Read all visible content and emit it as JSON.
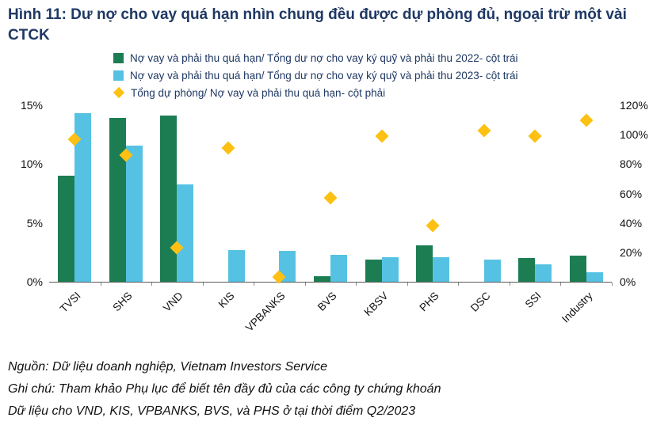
{
  "title": "Hình 11: Dư nợ cho vay quá hạn nhìn chung đều được dự phòng đủ, ngoại trừ một vài CTCK",
  "legend": [
    {
      "label": "Nợ vay và phải thu quá hạn/ Tổng dư nợ cho vay ký quỹ và phải thu 2022- cột trái",
      "swatch": "square",
      "color": "#1d7d52"
    },
    {
      "label": "Nợ vay và phải thu quá hạn/ Tổng dư nợ cho vay ký quỹ và phải thu 2023- cột trái",
      "swatch": "square",
      "color": "#56c2e3"
    },
    {
      "label": "Tổng dự phòng/ Nợ vay và phải thu quá hạn- cột phải",
      "swatch": "diamond",
      "color": "#fdc013"
    }
  ],
  "chart_data": {
    "type": "bar",
    "title": "Hình 11: Dư nợ cho vay quá hạn nhìn chung đều được dự phòng đủ, ngoại trừ một vài CTCK",
    "categories": [
      "TVSI",
      "SHS",
      "VND",
      "KIS",
      "VPBANKS",
      "BVS",
      "KBSV",
      "PHS",
      "DSC",
      "SSI",
      "Industry"
    ],
    "series": [
      {
        "name": "Nợ vay và phải thu quá hạn/ Tổng dư nợ cho vay ký quỹ và phải thu 2022- cột trái",
        "type": "bar",
        "axis": "left",
        "color": "#1d7d52",
        "values": [
          9.0,
          13.9,
          14.1,
          0,
          0,
          0.5,
          1.9,
          3.1,
          0,
          2.0,
          2.2
        ]
      },
      {
        "name": "Nợ vay và phải thu quá hạn/ Tổng dư nợ cho vay ký quỹ và phải thu 2023- cột trái",
        "type": "bar",
        "axis": "left",
        "color": "#56c2e3",
        "values": [
          14.3,
          11.6,
          8.3,
          2.7,
          2.6,
          2.3,
          2.1,
          2.1,
          1.9,
          1.5,
          0.8
        ]
      },
      {
        "name": "Tổng dự phòng/ Nợ vay và phải thu quá hạn- cột phải",
        "type": "scatter",
        "marker": "diamond",
        "axis": "right",
        "color": "#fdc013",
        "values": [
          97,
          86,
          23,
          91,
          3,
          57,
          99,
          38,
          103,
          99,
          110
        ]
      }
    ],
    "left_axis": {
      "min": 0,
      "max": 15,
      "tick_values": [
        15,
        10,
        5,
        0
      ],
      "tick_labels": [
        "15%",
        "10%",
        "5%",
        "0%"
      ]
    },
    "right_axis": {
      "min": 0,
      "max": 120,
      "tick_values": [
        120,
        100,
        80,
        60,
        40,
        20,
        0
      ],
      "tick_labels": [
        "120%",
        "100%",
        "80%",
        "60%",
        "40%",
        "20%",
        "0%"
      ]
    },
    "grid": false,
    "legend_position": "top"
  },
  "footer": {
    "lines": [
      "Nguồn: Dữ liệu doanh nghiệp, Vietnam Investors Service",
      "Ghi chú: Tham khảo Phụ lục để biết tên đầy đủ của các công ty chứng khoán",
      "Dữ liệu cho VND, KIS, VPBANKS, BVS, và PHS ở tại thời điểm Q2/2023"
    ]
  }
}
